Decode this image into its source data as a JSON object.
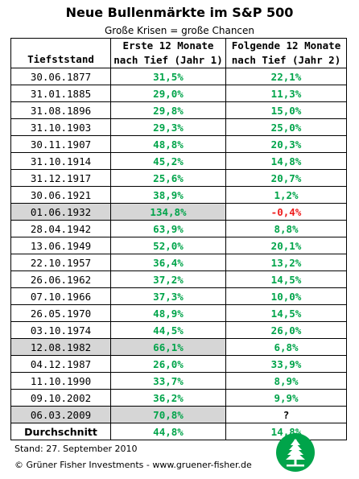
{
  "title": "Neue Bullenmärkte im S&P 500",
  "subtitle": "Große Krisen = große Chancen",
  "table": {
    "headers": {
      "col1": "Tiefststand",
      "col2_line1": "Erste 12 Monate",
      "col2_line2": "nach Tief (Jahr 1)",
      "col3_line1": "Folgende 12 Monate",
      "col3_line2": "nach Tief (Jahr 2)"
    },
    "rows": [
      {
        "date": "30.06.1877",
        "year1": "31,5%",
        "year2": "22,1%",
        "shaded": false,
        "year2_status": "positive"
      },
      {
        "date": "31.01.1885",
        "year1": "29,0%",
        "year2": "11,3%",
        "shaded": false,
        "year2_status": "positive"
      },
      {
        "date": "31.08.1896",
        "year1": "29,8%",
        "year2": "15,0%",
        "shaded": false,
        "year2_status": "positive"
      },
      {
        "date": "31.10.1903",
        "year1": "29,3%",
        "year2": "25,0%",
        "shaded": false,
        "year2_status": "positive"
      },
      {
        "date": "30.11.1907",
        "year1": "48,8%",
        "year2": "20,3%",
        "shaded": false,
        "year2_status": "positive"
      },
      {
        "date": "31.10.1914",
        "year1": "45,2%",
        "year2": "14,8%",
        "shaded": false,
        "year2_status": "positive"
      },
      {
        "date": "31.12.1917",
        "year1": "25,6%",
        "year2": "20,7%",
        "shaded": false,
        "year2_status": "positive"
      },
      {
        "date": "30.06.1921",
        "year1": "38,9%",
        "year2": "1,2%",
        "shaded": false,
        "year2_status": "positive"
      },
      {
        "date": "01.06.1932",
        "year1": "134,8%",
        "year2": "-0,4%",
        "shaded": true,
        "year2_status": "negative"
      },
      {
        "date": "28.04.1942",
        "year1": "63,9%",
        "year2": "8,8%",
        "shaded": false,
        "year2_status": "positive"
      },
      {
        "date": "13.06.1949",
        "year1": "52,0%",
        "year2": "20,1%",
        "shaded": false,
        "year2_status": "positive"
      },
      {
        "date": "22.10.1957",
        "year1": "36,4%",
        "year2": "13,2%",
        "shaded": false,
        "year2_status": "positive"
      },
      {
        "date": "26.06.1962",
        "year1": "37,2%",
        "year2": "14,5%",
        "shaded": false,
        "year2_status": "positive"
      },
      {
        "date": "07.10.1966",
        "year1": "37,3%",
        "year2": "10,0%",
        "shaded": false,
        "year2_status": "positive"
      },
      {
        "date": "26.05.1970",
        "year1": "48,9%",
        "year2": "14,5%",
        "shaded": false,
        "year2_status": "positive"
      },
      {
        "date": "03.10.1974",
        "year1": "44,5%",
        "year2": "26,0%",
        "shaded": false,
        "year2_status": "positive"
      },
      {
        "date": "12.08.1982",
        "year1": "66,1%",
        "year2": "6,8%",
        "shaded": true,
        "year2_status": "positive"
      },
      {
        "date": "04.12.1987",
        "year1": "26,0%",
        "year2": "33,9%",
        "shaded": false,
        "year2_status": "positive"
      },
      {
        "date": "11.10.1990",
        "year1": "33,7%",
        "year2": "8,9%",
        "shaded": false,
        "year2_status": "positive"
      },
      {
        "date": "09.10.2002",
        "year1": "36,2%",
        "year2": "9,9%",
        "shaded": false,
        "year2_status": "positive"
      },
      {
        "date": "06.03.2009",
        "year1": "70,8%",
        "year2": "?",
        "shaded": true,
        "year2_status": "unknown"
      }
    ],
    "average": {
      "label": "Durchschnitt",
      "year1": "44,8%",
      "year2": "14,8%"
    }
  },
  "colors": {
    "positive": "#00a44a",
    "negative": "#ee1c1c",
    "shade": "#d6d6d6",
    "logo": "#00a44a"
  },
  "footer": {
    "stand": "Stand: 27. September 2010",
    "copyright": "© Grüner Fisher Investments - www.gruener-fisher.de"
  },
  "logo_icon": "tree-logo-icon"
}
